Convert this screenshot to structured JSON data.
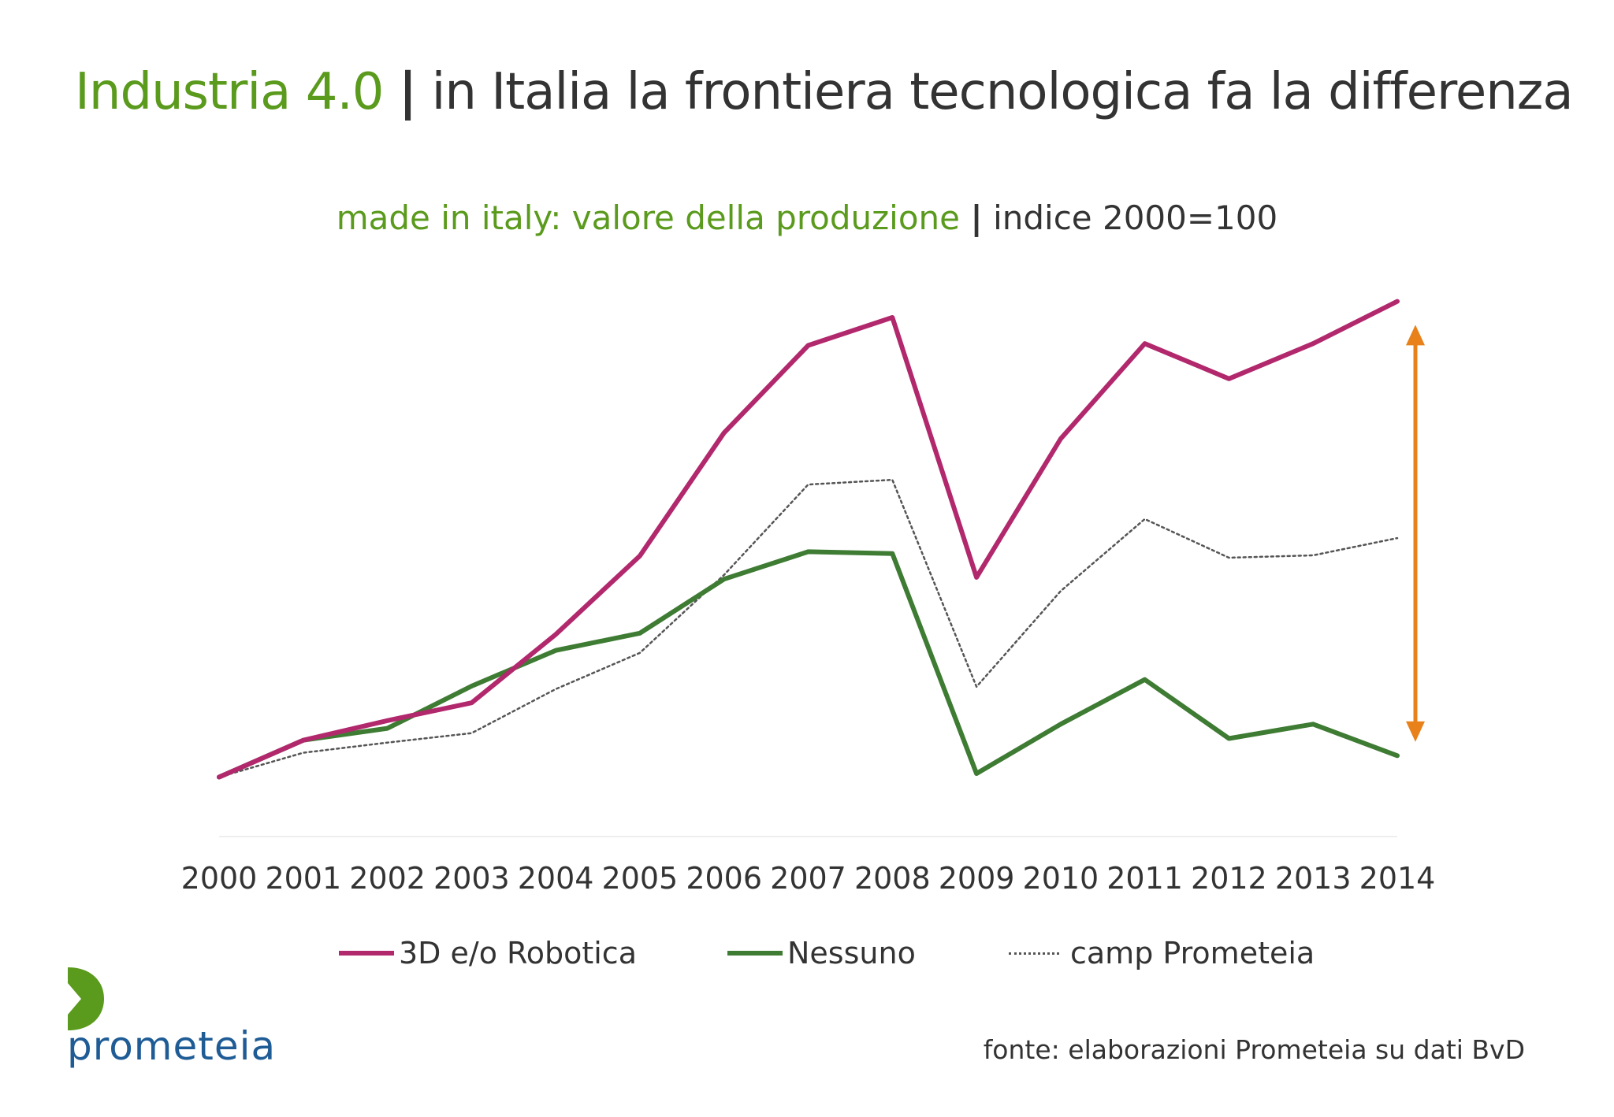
{
  "header": {
    "title_highlight": "Industria 4.0",
    "title_separator": "|",
    "title_rest": "in Italia la frontiera tecnologica fa la differenza"
  },
  "chart_data": {
    "type": "line",
    "subtitle_highlight": "made in italy: valore della produzione",
    "subtitle_separator": "|",
    "subtitle_rest": "indice 2000=100",
    "categories": [
      "2000",
      "2001",
      "2002",
      "2003",
      "2004",
      "2005",
      "2006",
      "2007",
      "2008",
      "2009",
      "2010",
      "2011",
      "2012",
      "2013",
      "2014"
    ],
    "series": [
      {
        "name": "3D e/o Robotica",
        "color": "#b2286d",
        "style": "solid",
        "values": [
          100,
          106.2,
          109.5,
          112.5,
          124.0,
          137.2,
          157.9,
          172.6,
          177.3,
          133.6,
          156.9,
          172.9,
          167.0,
          172.9,
          180.0
        ]
      },
      {
        "name": "Nessuno",
        "color": "#3e7b33",
        "style": "solid",
        "values": [
          100,
          106.2,
          108.2,
          115.3,
          121.3,
          124.2,
          133.3,
          137.9,
          137.6,
          100.6,
          108.9,
          116.4,
          106.5,
          108.9,
          103.6
        ]
      },
      {
        "name": "camp Prometeia",
        "color": "#555555",
        "style": "dotted",
        "values": [
          100,
          104.1,
          105.8,
          107.4,
          114.8,
          120.9,
          134.0,
          149.2,
          150.0,
          115.2,
          131.3,
          143.4,
          136.9,
          137.3,
          140.2
        ]
      }
    ],
    "ylim": [
      90,
      183
    ],
    "y_axis_labels": false,
    "grid": false,
    "legend_position": "bottom",
    "annotation": {
      "type": "double-arrow",
      "color": "#e8811a",
      "at": "2014",
      "description_values": [
        175,
        107
      ]
    }
  },
  "footer": {
    "logo_text": "prometeia",
    "source": "fonte: elaborazioni Prometeia su dati BvD"
  },
  "colors": {
    "brand_green": "#5a9a1c",
    "logo_blue": "#1f5c96",
    "text": "#333333"
  }
}
